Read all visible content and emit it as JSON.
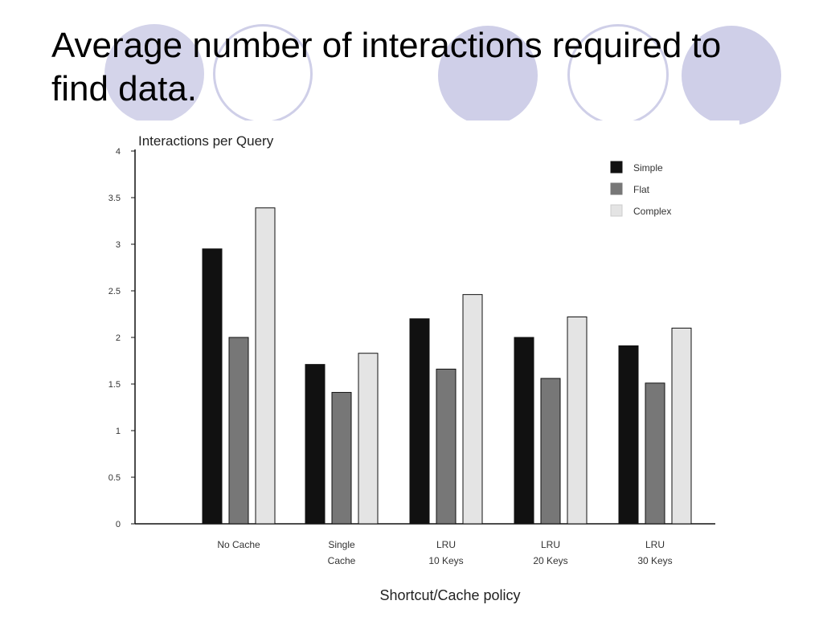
{
  "slide": {
    "title": "Average number of interactions required to find data."
  },
  "theme": {
    "circle_fill": "#cfcfe8",
    "axis_color": "#111111"
  },
  "chart_data": {
    "type": "bar",
    "title": "",
    "ylabel": "Interactions per Query",
    "xlabel": "Shortcut/Cache policy",
    "ylim": [
      0,
      4
    ],
    "yticks": [
      "0",
      "0.5",
      "1",
      "1.5",
      "2",
      "2.5",
      "3",
      "3.5",
      "4"
    ],
    "grid": false,
    "legend_position": "top-right",
    "categories": [
      [
        "No Cache"
      ],
      [
        "Single",
        "Cache"
      ],
      [
        "LRU",
        "10 Keys"
      ],
      [
        "LRU",
        "20 Keys"
      ],
      [
        "LRU",
        "30 Keys"
      ]
    ],
    "series": [
      {
        "name": "Simple",
        "color": "#111111",
        "values": [
          2.95,
          1.71,
          2.2,
          2.0,
          1.91
        ]
      },
      {
        "name": "Flat",
        "color": "#777777",
        "values": [
          2.0,
          1.41,
          1.66,
          1.56,
          1.51
        ]
      },
      {
        "name": "Complex",
        "color": "#e4e4e4",
        "values": [
          3.39,
          1.83,
          2.46,
          2.22,
          2.1
        ]
      }
    ]
  }
}
